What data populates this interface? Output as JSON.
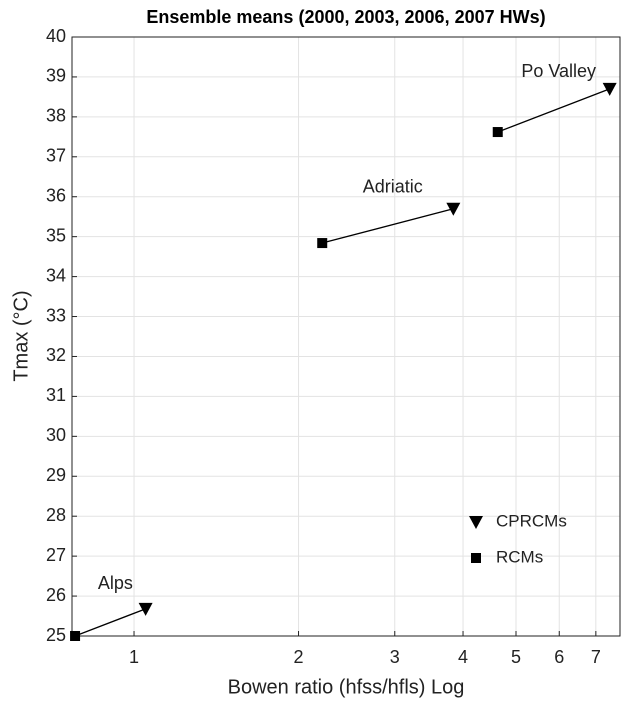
{
  "chart_data": {
    "type": "scatter",
    "title": "Ensemble means (2000, 2003, 2006, 2007 HWs)",
    "x_label": "Bowen ratio (hfss/hfls) Log",
    "y_label": "Tmax (°C)",
    "regions": [
      "Alps",
      "Adriatic",
      "Po Valley"
    ],
    "series": [
      {
        "name": "CPRCMs",
        "marker": "triangle",
        "color": "#000000",
        "x": [
          1.05,
          3.84,
          7.42
        ],
        "values": [
          25.68,
          35.7,
          38.7
        ]
      },
      {
        "name": "RCMs",
        "marker": "square",
        "color": "#000000",
        "x": [
          0.78,
          2.21,
          4.63
        ],
        "values": [
          25.0,
          34.84,
          37.62
        ]
      }
    ],
    "xscale": "log",
    "xlim": [
      0.77,
      7.75
    ],
    "xticks": [
      1,
      2,
      3,
      4,
      5,
      6,
      7
    ],
    "ylim": [
      25,
      40
    ],
    "yticks": [
      25,
      26,
      27,
      28,
      29,
      30,
      31,
      32,
      33,
      34,
      35,
      36,
      37,
      38,
      39,
      40
    ],
    "grid": true,
    "legend_position": "lower right"
  }
}
